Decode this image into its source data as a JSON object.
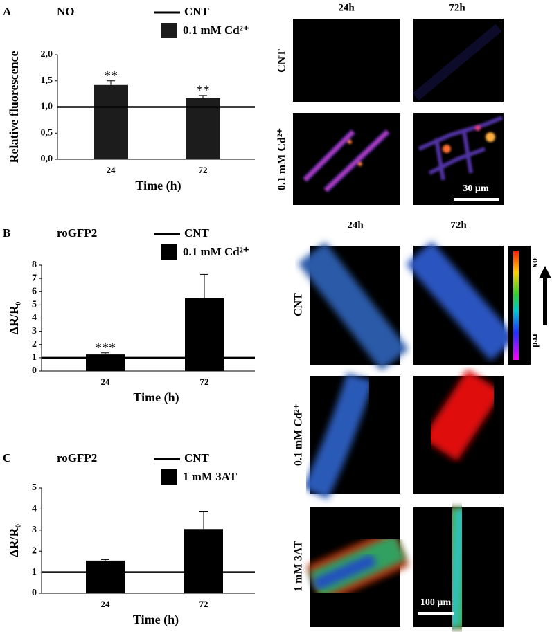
{
  "chart_data": [
    {
      "type": "bar",
      "panel": "A",
      "title": "NO",
      "y_label": "Relative fluorescence",
      "x_label": "Time (h)",
      "categories": [
        "24",
        "72"
      ],
      "ref_line": {
        "name": "CNT",
        "value": 1,
        "color": "#000000"
      },
      "series": [
        {
          "name": "0.1 mM Cd²⁺",
          "color": "#1c1c1c",
          "values": [
            1.42,
            1.17
          ],
          "errors": [
            0.08,
            0.05
          ]
        }
      ],
      "annotations": [
        {
          "x": "24",
          "text": "**"
        },
        {
          "x": "72",
          "text": "**"
        }
      ],
      "ylim": [
        0,
        2
      ],
      "yticks": [
        {
          "value": 0,
          "label": "0,0"
        },
        {
          "value": 0.5,
          "label": "0,5"
        },
        {
          "value": 1,
          "label": "1,0"
        },
        {
          "value": 1.5,
          "label": "1,5"
        },
        {
          "value": 2,
          "label": "2,0"
        }
      ]
    },
    {
      "type": "bar",
      "panel": "B",
      "title": "roGFP2",
      "y_label": "ΔR/R₀",
      "x_label": "Time (h)",
      "categories": [
        "24",
        "72"
      ],
      "ref_line": {
        "name": "CNT",
        "value": 1,
        "color": "#000000"
      },
      "series": [
        {
          "name": "0.1 mM Cd²⁺",
          "color": "#000000",
          "values": [
            1.25,
            5.5
          ],
          "errors": [
            0.12,
            1.8
          ]
        }
      ],
      "annotations": [
        {
          "x": "24",
          "text": "***"
        }
      ],
      "ylim": [
        0,
        8
      ],
      "yticks": [
        0,
        1,
        2,
        3,
        4,
        5,
        6,
        7,
        8
      ]
    },
    {
      "type": "bar",
      "panel": "C",
      "title": "roGFP2",
      "y_label": "ΔR/R₀",
      "x_label": "Time (h)",
      "categories": [
        "24",
        "72"
      ],
      "ref_line": {
        "name": "CNT",
        "value": 1,
        "color": "#000000"
      },
      "series": [
        {
          "name": "1 mM 3AT",
          "color": "#000000",
          "values": [
            1.55,
            3.05
          ],
          "errors": [
            0.05,
            0.85
          ]
        }
      ],
      "annotations": [],
      "ylim": [
        0,
        5
      ],
      "yticks": [
        0,
        1,
        2,
        3,
        4,
        5
      ]
    }
  ],
  "micrographs": {
    "A": {
      "columns": [
        "24h",
        "72h"
      ],
      "rows": [
        "CNT",
        "0.1 mM Cd²⁺"
      ],
      "scale_bar": "30 µm"
    },
    "B": {
      "columns": [
        "24h",
        "72h"
      ],
      "rows": [
        "CNT",
        "0.1 mM Cd²⁺",
        "1 mM 3AT"
      ],
      "scale_bar": "100 µm",
      "colorbar": {
        "top": "ox",
        "bottom": "red"
      }
    }
  }
}
